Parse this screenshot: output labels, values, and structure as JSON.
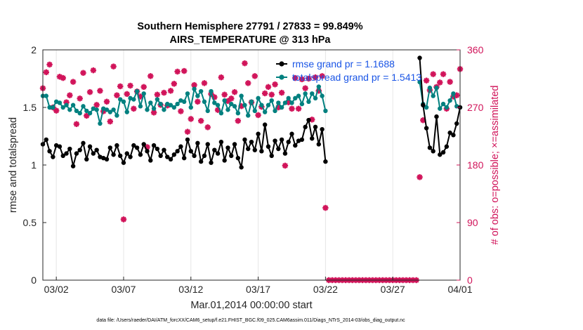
{
  "chart_data": {
    "type": "line",
    "title": "Southern Hemisphere 27791 / 27833 = 99.849%",
    "subtitle": "AIRS_TEMPERATURE @ 313 hPa",
    "xlabel": "Mar.01,2014 00:00:00 start",
    "ylabel": "rmse and totalspread",
    "y2label": "# of obs: o=possible; ×=assimilated",
    "footer": "data file: /Users/raeder/DAI/ATM_forcXX/CAM6_setup/f.e21.FHIST_BGC.f09_025.CAM6assim.011/Diags_NTrS_2014-03/obs_diag_output.nc",
    "xlim": [
      0.5,
      31.5
    ],
    "ylim": [
      0,
      2
    ],
    "y2lim": [
      0,
      360
    ],
    "x_ticks": [
      1.5,
      6.5,
      11.5,
      16.5,
      21.5,
      26.5,
      31.5
    ],
    "x_tick_labels": [
      "03/02",
      "03/07",
      "03/12",
      "03/17",
      "03/22",
      "03/27",
      "04/01"
    ],
    "y_ticks": [
      0,
      0.5,
      1,
      1.5,
      2
    ],
    "y_tick_labels": [
      "0",
      "0.5",
      "1",
      "1.5",
      "2"
    ],
    "y2_ticks": [
      0,
      90,
      180,
      270,
      360
    ],
    "y2_tick_labels": [
      "0",
      "90",
      "180",
      "270",
      "360"
    ],
    "grid": "vertical",
    "legend": "top-right",
    "colors": {
      "rmse": "#000000",
      "spread": "#00807f",
      "obs": "#d1145a",
      "legend_text": "#1a55e6"
    },
    "series": [
      {
        "name": "rmse grand pr = 1.1688",
        "axis": "left",
        "segments": [
          {
            "x": [
              0.5,
              0.75,
              1,
              1.25,
              1.5,
              1.75,
              2,
              2.25,
              2.5,
              2.75,
              3,
              3.25,
              3.5,
              3.75,
              4,
              4.25,
              4.5,
              4.75,
              5,
              5.25,
              5.5,
              5.75,
              6,
              6.25,
              6.5,
              6.75,
              7,
              7.25,
              7.5,
              7.75,
              8,
              8.25,
              8.5,
              8.75,
              9,
              9.25,
              9.5,
              9.75,
              10,
              10.25,
              10.5,
              10.75,
              11,
              11.25,
              11.5,
              11.75,
              12,
              12.25,
              12.5,
              12.75,
              13,
              13.25,
              13.5,
              13.75,
              14,
              14.25,
              14.5,
              14.75,
              15,
              15.25,
              15.5,
              15.75,
              16,
              16.25,
              16.5,
              16.75,
              17,
              17.25,
              17.5,
              17.75,
              18,
              18.25,
              18.5,
              18.75,
              19,
              19.25,
              19.5,
              19.75,
              20,
              20.25,
              20.5,
              20.75,
              21,
              21.25,
              21.5
            ],
            "y": [
              1.18,
              1.22,
              1.12,
              1.07,
              1.17,
              1.16,
              1.08,
              1.1,
              1.14,
              0.99,
              1.1,
              1.13,
              1.19,
              1.05,
              1.16,
              1.1,
              1.13,
              1.07,
              1.06,
              1.05,
              1.15,
              1.09,
              1.17,
              1.08,
              1.02,
              1.1,
              1.07,
              1.17,
              1.15,
              1.09,
              1.18,
              1.12,
              1.04,
              1.17,
              1.14,
              1.08,
              1.13,
              1.07,
              1.05,
              1.09,
              1.12,
              1.16,
              1.06,
              1.22,
              1.12,
              1.08,
              1.19,
              1.03,
              1.08,
              1.18,
              1.02,
              1.13,
              1.1,
              1.2,
              1.04,
              1.15,
              1.08,
              1.18,
              1.06,
              0.98,
              1.22,
              1.14,
              1.2,
              1.13,
              1.27,
              1.12,
              1.35,
              1.16,
              1.08,
              1.21,
              1.14,
              1.22,
              1.1,
              1.2,
              1.27,
              1.17,
              1.21,
              1.22,
              1.33,
              1.39,
              1.23,
              1.33,
              1.18,
              1.31,
              1.03
            ]
          },
          {
            "x": [
              28.5,
              28.75,
              29,
              29.25,
              29.5,
              29.75,
              30,
              30.25,
              30.5,
              30.75,
              31,
              31.25,
              31.5
            ],
            "y": [
              1.93,
              1.52,
              1.32,
              1.15,
              1.12,
              1.42,
              1.09,
              1.11,
              1.16,
              1.28,
              1.26,
              1.36,
              1.5
            ]
          }
        ]
      },
      {
        "name": "totalspread grand pr = 1.5413",
        "axis": "left",
        "segments": [
          {
            "x": [
              0.5,
              0.75,
              1,
              1.25,
              1.5,
              1.75,
              2,
              2.25,
              2.5,
              2.75,
              3,
              3.25,
              3.5,
              3.75,
              4,
              4.25,
              4.5,
              4.75,
              5,
              5.25,
              5.5,
              5.75,
              6,
              6.25,
              6.5,
              6.75,
              7,
              7.25,
              7.5,
              7.75,
              8,
              8.25,
              8.5,
              8.75,
              9,
              9.25,
              9.5,
              9.75,
              10,
              10.25,
              10.5,
              10.75,
              11,
              11.25,
              11.5,
              11.75,
              12,
              12.25,
              12.5,
              12.75,
              13,
              13.25,
              13.5,
              13.75,
              14,
              14.25,
              14.5,
              14.75,
              15,
              15.25,
              15.5,
              15.75,
              16,
              16.25,
              16.5,
              16.75,
              17,
              17.25,
              17.5,
              17.75,
              18,
              18.25,
              18.5,
              18.75,
              19,
              19.25,
              19.5,
              19.75,
              20,
              20.25,
              20.5,
              20.75,
              21,
              21.25,
              21.5
            ],
            "y": [
              1.6,
              1.6,
              1.5,
              1.5,
              1.55,
              1.54,
              1.5,
              1.52,
              1.48,
              1.52,
              1.47,
              1.45,
              1.51,
              1.47,
              1.45,
              1.49,
              1.48,
              1.36,
              1.49,
              1.48,
              1.46,
              1.48,
              1.43,
              1.57,
              1.55,
              1.46,
              1.58,
              1.57,
              1.64,
              1.51,
              1.62,
              1.48,
              1.54,
              1.49,
              1.57,
              1.53,
              1.48,
              1.53,
              1.52,
              1.5,
              1.53,
              1.56,
              1.55,
              1.62,
              1.5,
              1.66,
              1.6,
              1.64,
              1.55,
              1.47,
              1.64,
              1.54,
              1.52,
              1.45,
              1.56,
              1.48,
              1.53,
              1.51,
              1.45,
              1.6,
              1.52,
              1.43,
              1.55,
              1.47,
              1.58,
              1.52,
              1.46,
              1.52,
              1.56,
              1.47,
              1.54,
              1.5,
              1.54,
              1.58,
              1.54,
              1.58,
              1.6,
              1.53,
              1.62,
              1.55,
              1.62,
              1.58,
              1.68,
              1.6,
              1.47
            ]
          },
          {
            "x": [
              28.5,
              28.75,
              29,
              29.25,
              29.5,
              29.75,
              30,
              30.25,
              30.5,
              30.75,
              31,
              31.25,
              31.5
            ],
            "y": [
              1.72,
              1.53,
              1.5,
              1.67,
              1.6,
              1.67,
              1.49,
              1.53,
              1.5,
              1.56,
              1.62,
              1.51,
              1.5
            ]
          }
        ]
      },
      {
        "name": "obs",
        "axis": "right",
        "x": [
          0.5,
          0.75,
          1,
          1.25,
          1.5,
          1.75,
          2,
          2.25,
          2.5,
          2.75,
          3,
          3.25,
          3.5,
          3.75,
          4,
          4.25,
          4.5,
          4.75,
          5,
          5.25,
          5.5,
          5.75,
          6,
          6.25,
          6.5,
          6.75,
          7,
          7.25,
          7.5,
          7.75,
          8,
          8.25,
          8.5,
          8.75,
          9,
          9.25,
          9.5,
          9.75,
          10,
          10.25,
          10.5,
          10.75,
          11,
          11.25,
          11.5,
          11.75,
          12,
          12.25,
          12.5,
          12.75,
          13,
          13.25,
          13.5,
          13.75,
          14,
          14.25,
          14.5,
          14.75,
          15,
          15.25,
          15.5,
          15.75,
          16,
          16.25,
          16.5,
          16.75,
          17,
          17.25,
          17.5,
          17.75,
          18,
          18.25,
          18.5,
          18.75,
          19,
          19.25,
          19.5,
          19.75,
          20,
          20.25,
          20.5,
          20.75,
          21,
          21.25,
          21.5,
          21.75,
          22,
          22.25,
          22.5,
          22.75,
          23,
          23.25,
          23.5,
          23.75,
          24,
          24.25,
          24.5,
          24.75,
          25,
          25.25,
          25.5,
          25.75,
          26,
          26.25,
          26.5,
          26.75,
          27,
          27.25,
          27.5,
          27.75,
          28,
          28.25,
          28.5,
          28.75,
          29,
          29.25,
          29.5,
          29.75,
          30,
          30.25,
          30.5,
          30.75,
          31,
          31.25,
          31.5
        ],
        "y": [
          300,
          325,
          337,
          270,
          265,
          318,
          316,
          278,
          289,
          310,
          244,
          284,
          324,
          257,
          294,
          328,
          274,
          296,
          264,
          279,
          248,
          334,
          289,
          303,
          95,
          291,
          304,
          268,
          295,
          287,
          302,
          208,
          319,
          262,
          290,
          274,
          293,
          273,
          296,
          307,
          326,
          264,
          327,
          232,
          252,
          305,
          279,
          249,
          308,
          239,
          291,
          286,
          266,
          317,
          290,
          280,
          284,
          294,
          249,
          272,
          339,
          308,
          278,
          319,
          258,
          271,
          292,
          302,
          290,
          306,
          270,
          293,
          179,
          278,
          268,
          316,
          268,
          314,
          300,
          315,
          251,
          317,
          296,
          319,
          113,
          0,
          0,
          0,
          0,
          0,
          0,
          0,
          0,
          0,
          0,
          0,
          0,
          0,
          0,
          0,
          0,
          0,
          0,
          0,
          0,
          0,
          0,
          0,
          0,
          0,
          0,
          0,
          161,
          250,
          312,
          297,
          322,
          302,
          309,
          322,
          268,
          310,
          287,
          289,
          330
        ]
      }
    ]
  }
}
